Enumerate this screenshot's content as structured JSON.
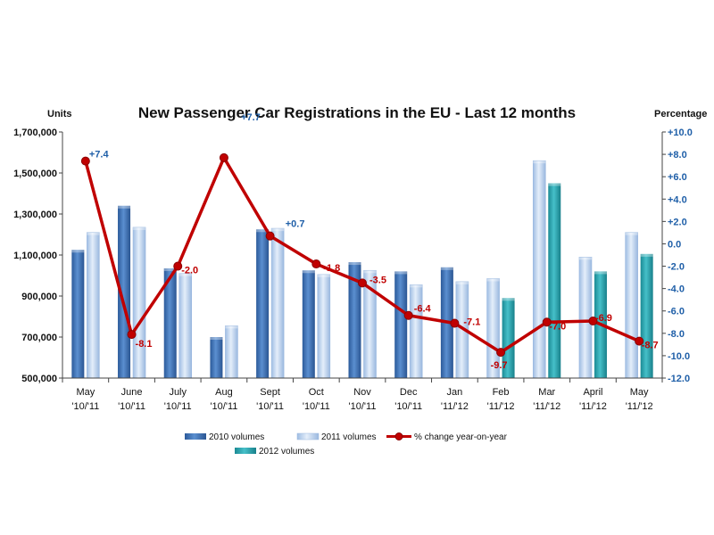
{
  "chart_data": {
    "type": "bar",
    "title": "New Passenger Car Registrations in the EU - Last 12 months",
    "ylabel_left": "Units",
    "ylabel_right": "Percentage",
    "ylim_left": [
      500000,
      1700000
    ],
    "ylim_right": [
      -12,
      10
    ],
    "yticks_left": [
      "500,000",
      "700,000",
      "900,000",
      "1,100,000",
      "1,300,000",
      "1,500,000",
      "1,700,000"
    ],
    "yticks_left_values": [
      500000,
      700000,
      900000,
      1100000,
      1300000,
      1500000,
      1700000
    ],
    "yticks_right": [
      "-12.0",
      "-10.0",
      "-8.0",
      "-6.0",
      "-4.0",
      "-2.0",
      "0.0",
      "+2.0",
      "+4.0",
      "+6.0",
      "+8.0",
      "+10.0"
    ],
    "yticks_right_values": [
      -12,
      -10,
      -8,
      -6,
      -4,
      -2,
      0,
      2,
      4,
      6,
      8,
      10
    ],
    "categories": [
      [
        "May",
        "'10/'11"
      ],
      [
        "June",
        "'10/'11"
      ],
      [
        "July",
        "'10/'11"
      ],
      [
        "Aug",
        "'10/'11"
      ],
      [
        "Sept",
        "'10/'11"
      ],
      [
        "Oct",
        "'10/'11"
      ],
      [
        "Nov",
        "'10/'11"
      ],
      [
        "Dec",
        "'10/'11"
      ],
      [
        "Jan",
        "'11/'12"
      ],
      [
        "Feb",
        "'11/'12"
      ],
      [
        "Mar",
        "'11/'12"
      ],
      [
        "April",
        "'11/'12"
      ],
      [
        "May",
        "'11/'12"
      ]
    ],
    "series": [
      {
        "name": "2010 volumes",
        "values": [
          1125000,
          1340000,
          1035000,
          700000,
          1225000,
          1025000,
          1065000,
          1020000,
          1040000,
          null,
          null,
          null,
          null
        ]
      },
      {
        "name": "2011 volumes",
        "values": [
          1210000,
          1235000,
          1010000,
          755000,
          1230000,
          1005000,
          1025000,
          955000,
          970000,
          985000,
          1560000,
          1090000,
          1210000
        ]
      },
      {
        "name": "2012 volumes",
        "values": [
          null,
          null,
          null,
          null,
          null,
          null,
          null,
          null,
          null,
          890000,
          1450000,
          1020000,
          1105000
        ]
      },
      {
        "name": "% change year-on-year",
        "axis": "right",
        "values": [
          7.4,
          -8.1,
          -2.0,
          7.7,
          0.7,
          -1.8,
          -3.5,
          -6.4,
          -7.1,
          -9.7,
          -7.0,
          -6.9,
          -8.7
        ],
        "labels": [
          "+7.4",
          "-8.1",
          "-2.0",
          "+7.7",
          "+0.7",
          "-1.8",
          "-3.5",
          "-6.4",
          "-7.1",
          "-9.7",
          "-7.0",
          "-6.9",
          "-8.7"
        ]
      }
    ],
    "colors": {
      "vol2010": "#3a6db0",
      "vol2011": "#b9d0ee",
      "vol2012": "#2aa3ad",
      "line": "#c00000",
      "pct_positive": "#1f5fa8",
      "pct_negative": "#c00000",
      "axis": "#444444"
    },
    "legend": {
      "position": "bottom",
      "items": [
        "2010 volumes",
        "2011 volumes",
        "% change year-on-year",
        "2012 volumes"
      ]
    },
    "grid": false
  }
}
